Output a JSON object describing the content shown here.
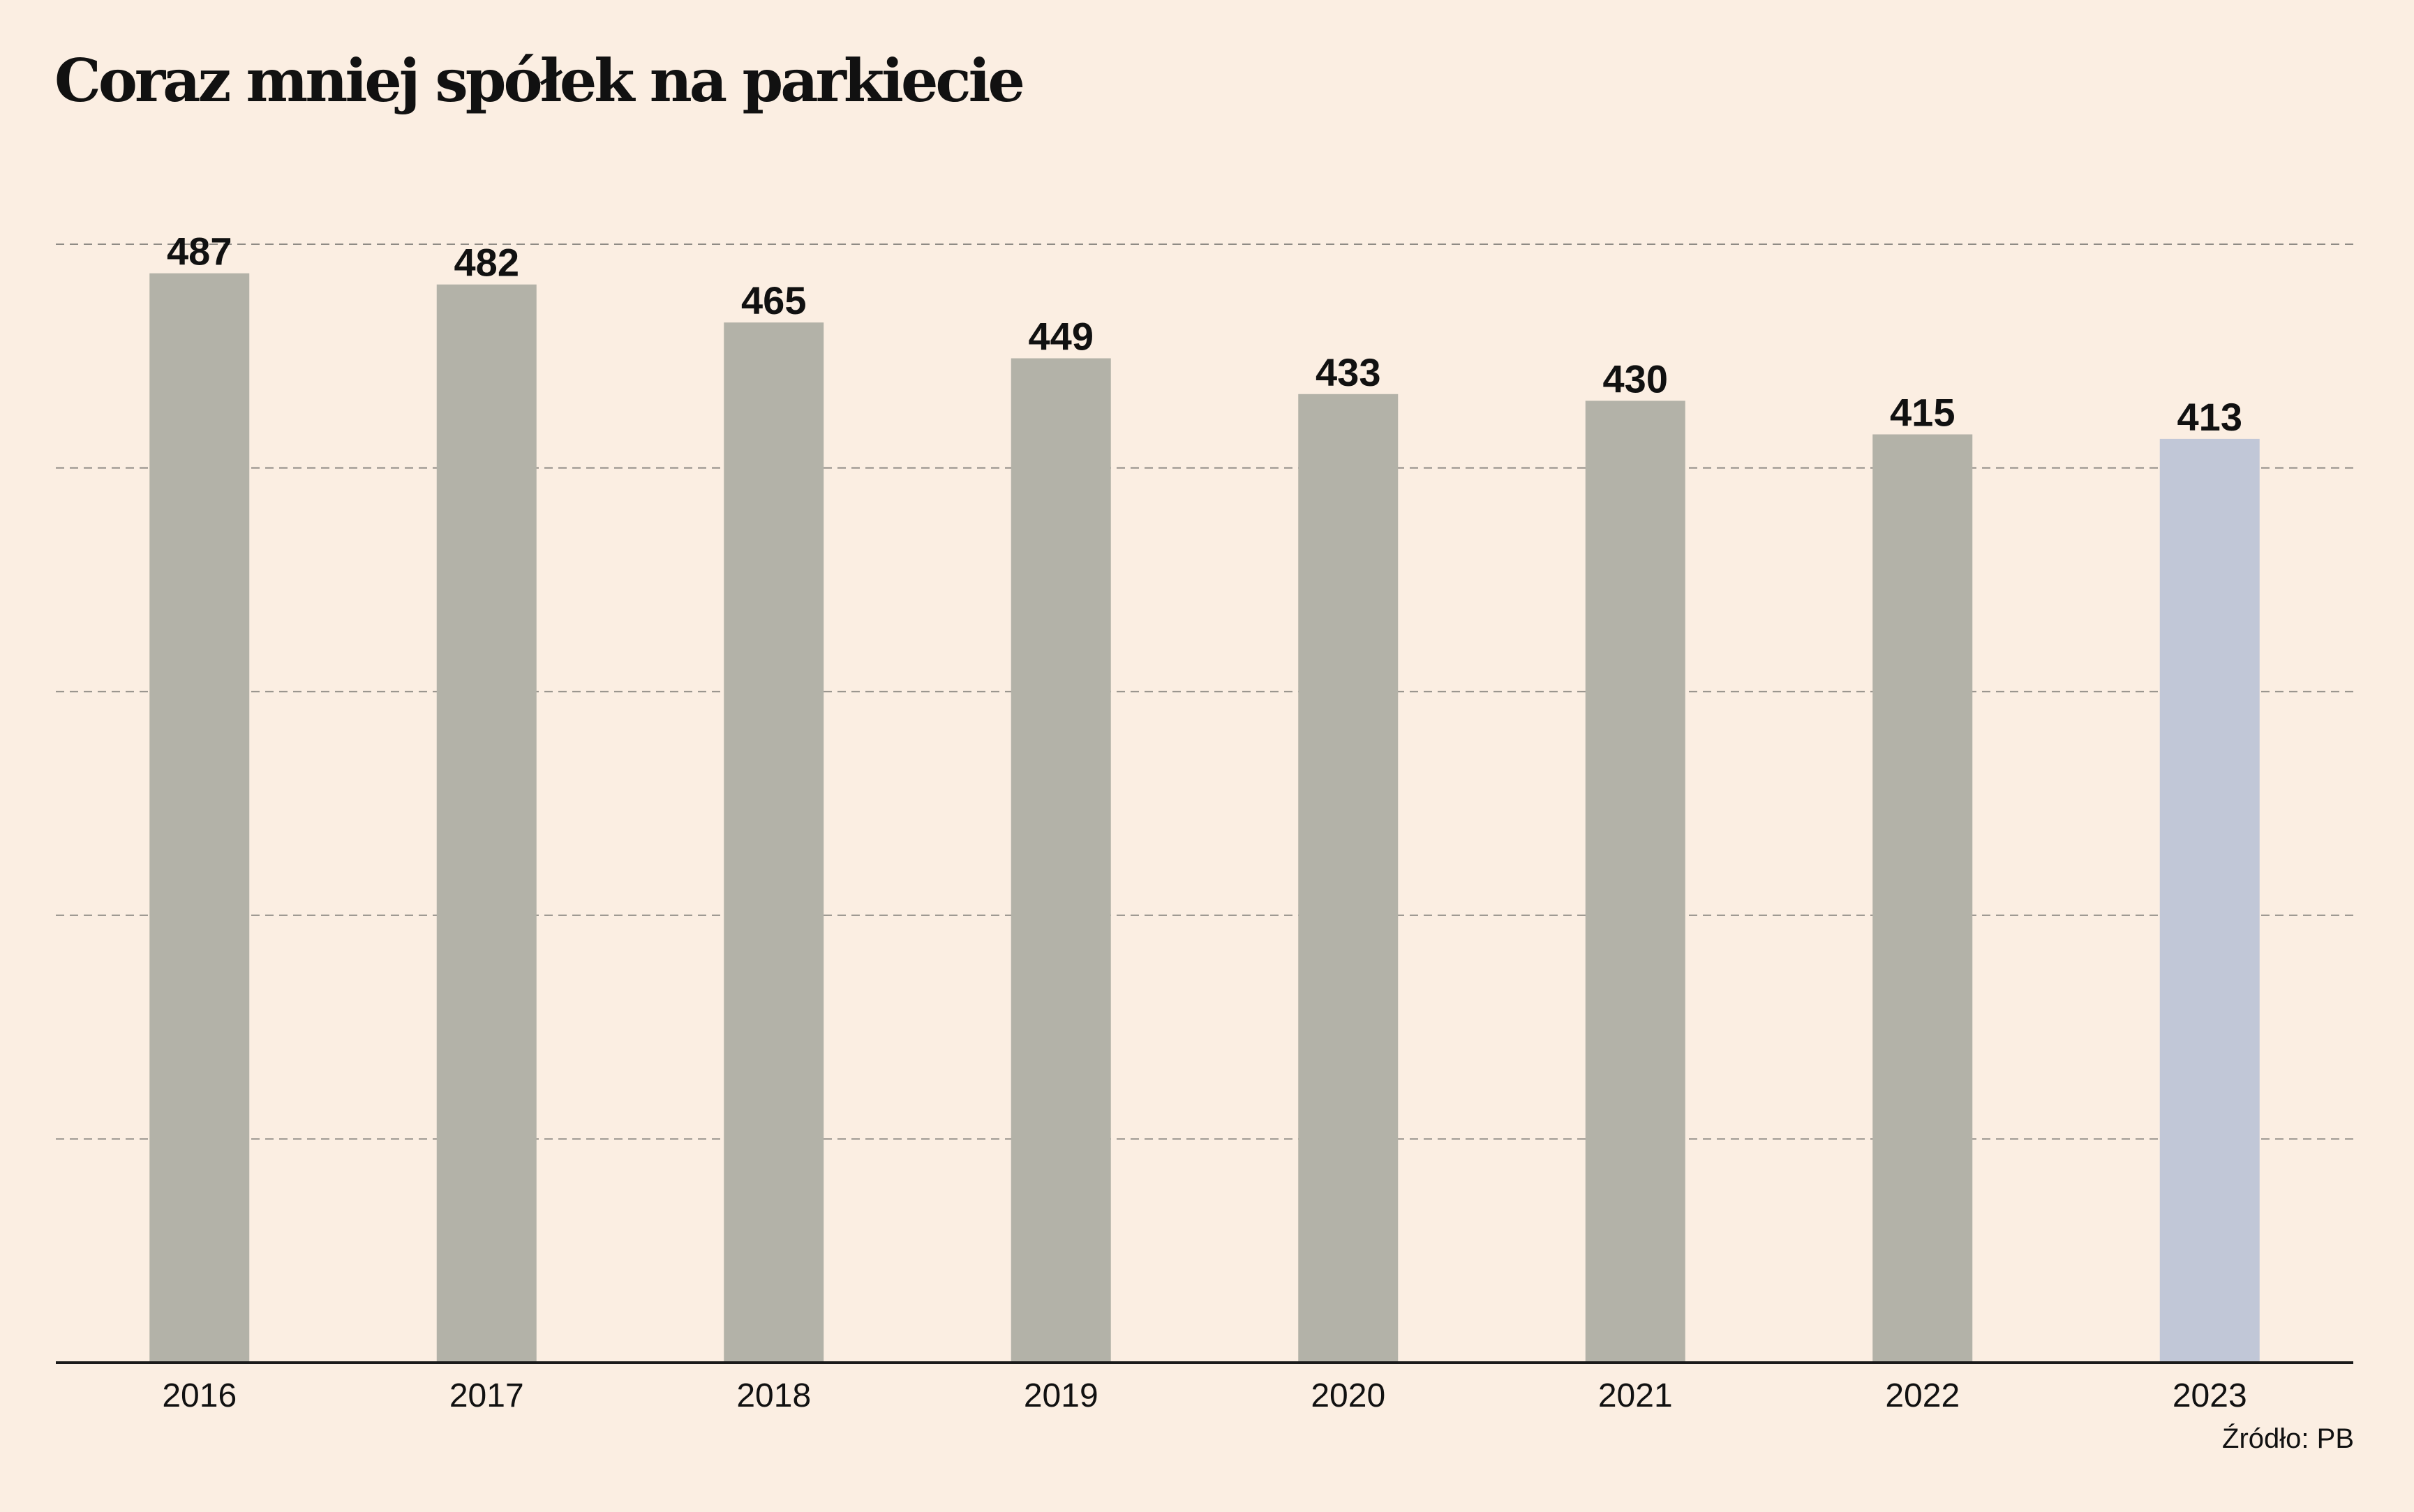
{
  "chart_data": {
    "type": "bar",
    "title": "Coraz mniej spółek na parkiecie",
    "source": "Źródło: PB",
    "categories": [
      "2016",
      "2017",
      "2018",
      "2019",
      "2020",
      "2021",
      "2022",
      "2023"
    ],
    "values": [
      487,
      482,
      465,
      449,
      433,
      430,
      415,
      413
    ],
    "value_labels": [
      "487",
      "482",
      "465",
      "449",
      "433",
      "430",
      "415",
      "413"
    ],
    "ylim": [
      0,
      500
    ],
    "grid": true,
    "xlabel": "",
    "ylabel": "",
    "colors": {
      "bar": "#b3b2a8",
      "highlight": "#c1c7d7",
      "grid": "#8f8b85",
      "axis": "#1a1a1a",
      "text": "#111111",
      "background": "#fbeee2"
    },
    "highlight_category": "2023"
  }
}
